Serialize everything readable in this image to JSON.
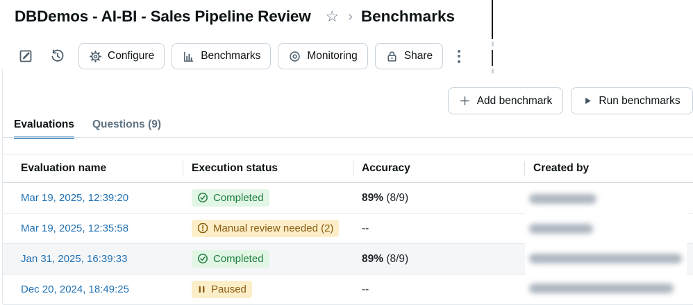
{
  "header": {
    "title": "DBDemos - AI-BI - Sales Pipeline Review",
    "breadcrumb": "Benchmarks",
    "star_icon": "☆",
    "chevron_icon": "›"
  },
  "toolbar": {
    "edit_icon": "pencil-square",
    "history_icon": "clock-restore",
    "configure": "Configure",
    "benchmarks": "Benchmarks",
    "monitoring": "Monitoring",
    "share": "Share",
    "kebab_icon": "⋮"
  },
  "actions": {
    "add_benchmark": "Add benchmark",
    "add_icon": "+",
    "run_benchmarks": "Run benchmarks",
    "run_icon": "▶"
  },
  "tabs": {
    "evaluations": "Evaluations",
    "questions": "Questions (9)"
  },
  "table": {
    "columns": [
      "Evaluation name",
      "Execution status",
      "Accuracy",
      "Created by"
    ],
    "rows": [
      {
        "evaluation_name": "Mar 19, 2025, 12:39:20",
        "status": "Completed",
        "status_type": "success",
        "accuracy_value": "89%",
        "accuracy_detail": "(8/9)",
        "created_by_redacted": true,
        "redaction_width": 97,
        "striped": false
      },
      {
        "evaluation_name": "Mar 19, 2025, 12:35:58",
        "status": "Manual review needed (2)",
        "status_type": "warning",
        "accuracy_value": "--",
        "accuracy_detail": "",
        "created_by_redacted": true,
        "redaction_width": 92,
        "striped": false
      },
      {
        "evaluation_name": "Jan 31, 2025, 16:39:33",
        "status": "Completed",
        "status_type": "success",
        "accuracy_value": "89%",
        "accuracy_detail": "(8/9)",
        "created_by_redacted": true,
        "redaction_width": 220,
        "striped": true
      },
      {
        "evaluation_name": "Dec 20, 2024, 18:49:25",
        "status": "Paused",
        "status_type": "paused",
        "accuracy_value": "--",
        "accuracy_detail": "",
        "created_by_redacted": true,
        "redaction_width": 208,
        "striped": false
      }
    ]
  },
  "colors": {
    "link_blue": "#2272B4",
    "tab_accent": "#2272B4",
    "success_bg": "#E2F6E5",
    "success_text": "#1B7D3E",
    "warning_bg": "#FBEEC8",
    "warning_text": "#8D5C10",
    "icon_slate": "#5F7281",
    "text_dark": "#0E1416"
  }
}
